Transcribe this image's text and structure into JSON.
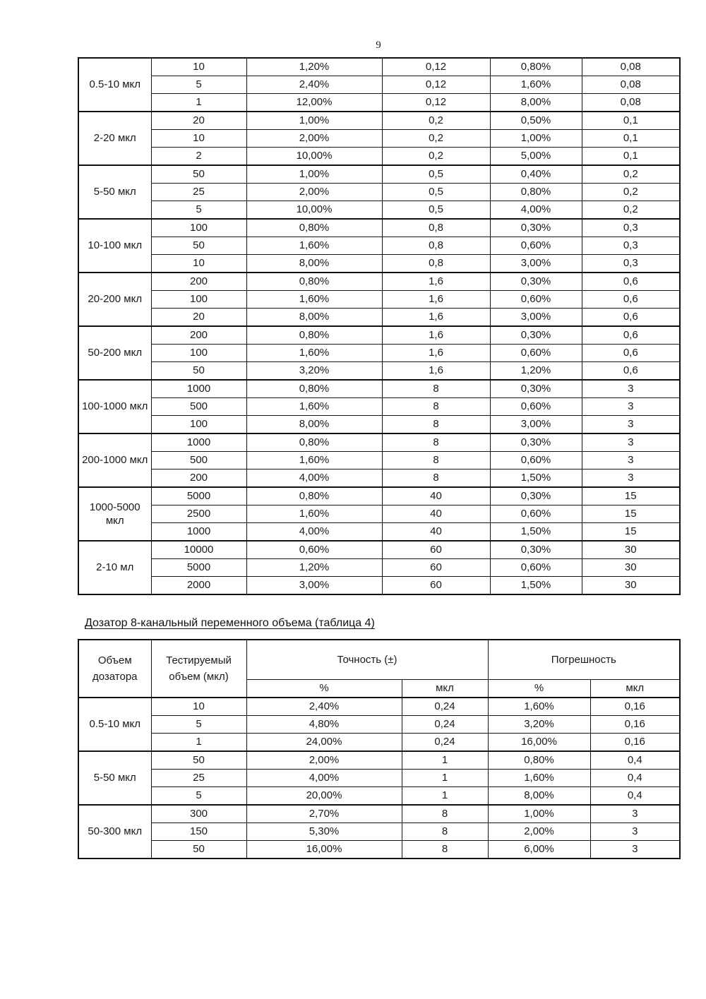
{
  "page": {
    "number": "9"
  },
  "table1": {
    "groups": [
      {
        "label": "0.5-10 мкл",
        "rows": [
          [
            "10",
            "1,20%",
            "0,12",
            "0,80%",
            "0,08"
          ],
          [
            "5",
            "2,40%",
            "0,12",
            "1,60%",
            "0,08"
          ],
          [
            "1",
            "12,00%",
            "0,12",
            "8,00%",
            "0,08"
          ]
        ]
      },
      {
        "label": "2-20 мкл",
        "rows": [
          [
            "20",
            "1,00%",
            "0,2",
            "0,50%",
            "0,1"
          ],
          [
            "10",
            "2,00%",
            "0,2",
            "1,00%",
            "0,1"
          ],
          [
            "2",
            "10,00%",
            "0,2",
            "5,00%",
            "0,1"
          ]
        ]
      },
      {
        "label": "5-50 мкл",
        "rows": [
          [
            "50",
            "1,00%",
            "0,5",
            "0,40%",
            "0,2"
          ],
          [
            "25",
            "2,00%",
            "0,5",
            "0,80%",
            "0,2"
          ],
          [
            "5",
            "10,00%",
            "0,5",
            "4,00%",
            "0,2"
          ]
        ]
      },
      {
        "label": "10-100 мкл",
        "rows": [
          [
            "100",
            "0,80%",
            "0,8",
            "0,30%",
            "0,3"
          ],
          [
            "50",
            "1,60%",
            "0,8",
            "0,60%",
            "0,3"
          ],
          [
            "10",
            "8,00%",
            "0,8",
            "3,00%",
            "0,3"
          ]
        ]
      },
      {
        "label": "20-200 мкл",
        "rows": [
          [
            "200",
            "0,80%",
            "1,6",
            "0,30%",
            "0,6"
          ],
          [
            "100",
            "1,60%",
            "1,6",
            "0,60%",
            "0,6"
          ],
          [
            "20",
            "8,00%",
            "1,6",
            "3,00%",
            "0,6"
          ]
        ]
      },
      {
        "label": "50-200 мкл",
        "rows": [
          [
            "200",
            "0,80%",
            "1,6",
            "0,30%",
            "0,6"
          ],
          [
            "100",
            "1,60%",
            "1,6",
            "0,60%",
            "0,6"
          ],
          [
            "50",
            "3,20%",
            "1,6",
            "1,20%",
            "0,6"
          ]
        ]
      },
      {
        "label": "100-1000 мкл",
        "rows": [
          [
            "1000",
            "0,80%",
            "8",
            "0,30%",
            "3"
          ],
          [
            "500",
            "1,60%",
            "8",
            "0,60%",
            "3"
          ],
          [
            "100",
            "8,00%",
            "8",
            "3,00%",
            "3"
          ]
        ]
      },
      {
        "label": "200-1000 мкл",
        "rows": [
          [
            "1000",
            "0,80%",
            "8",
            "0,30%",
            "3"
          ],
          [
            "500",
            "1,60%",
            "8",
            "0,60%",
            "3"
          ],
          [
            "200",
            "4,00%",
            "8",
            "1,50%",
            "3"
          ]
        ]
      },
      {
        "label": "1000-5000 мкл",
        "rows": [
          [
            "5000",
            "0,80%",
            "40",
            "0,30%",
            "15"
          ],
          [
            "2500",
            "1,60%",
            "40",
            "0,60%",
            "15"
          ],
          [
            "1000",
            "4,00%",
            "40",
            "1,50%",
            "15"
          ]
        ]
      },
      {
        "label": "2-10 мл",
        "rows": [
          [
            "10000",
            "0,60%",
            "60",
            "0,30%",
            "30"
          ],
          [
            "5000",
            "1,20%",
            "60",
            "0,60%",
            "30"
          ],
          [
            "2000",
            "3,00%",
            "60",
            "1,50%",
            "30"
          ]
        ]
      }
    ]
  },
  "section": {
    "heading": "Дозатор 8-канальный переменного объема (таблица 4)"
  },
  "table2": {
    "header": {
      "dispenser_volume": "Объем дозатора",
      "test_volume": "Тестируемый объем (мкл)",
      "accuracy": "Точность (±)",
      "error": "Погрешность",
      "sub": [
        "%",
        "мкл",
        "%",
        "мкл"
      ]
    },
    "groups": [
      {
        "label": "0.5-10 мкл",
        "rows": [
          [
            "10",
            "2,40%",
            "0,24",
            "1,60%",
            "0,16"
          ],
          [
            "5",
            "4,80%",
            "0,24",
            "3,20%",
            "0,16"
          ],
          [
            "1",
            "24,00%",
            "0,24",
            "16,00%",
            "0,16"
          ]
        ]
      },
      {
        "label": "5-50 мкл",
        "rows": [
          [
            "50",
            "2,00%",
            "1",
            "0,80%",
            "0,4"
          ],
          [
            "25",
            "4,00%",
            "1",
            "1,60%",
            "0,4"
          ],
          [
            "5",
            "20,00%",
            "1",
            "8,00%",
            "0,4"
          ]
        ]
      },
      {
        "label": "50-300 мкл",
        "rows": [
          [
            "300",
            "2,70%",
            "8",
            "1,00%",
            "3"
          ],
          [
            "150",
            "5,30%",
            "8",
            "2,00%",
            "3"
          ],
          [
            "50",
            "16,00%",
            "8",
            "6,00%",
            "3"
          ]
        ]
      }
    ]
  }
}
